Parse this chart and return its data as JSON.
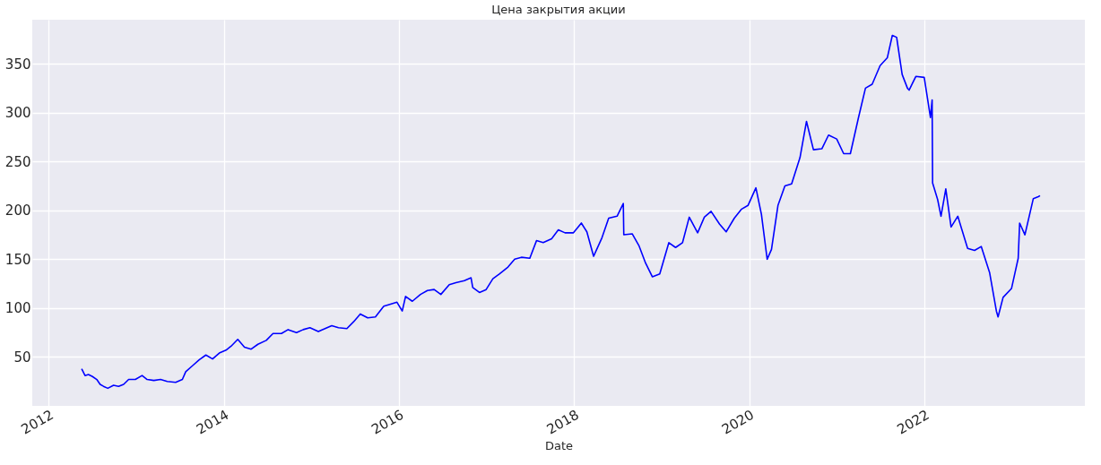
{
  "chart_data": {
    "type": "line",
    "title": "Цена закрытия акции",
    "xlabel": "Date",
    "x": [
      "2012-05-18",
      "2012-06-01",
      "2012-06-15",
      "2012-07-02",
      "2012-07-20",
      "2012-08-03",
      "2012-08-17",
      "2012-09-04",
      "2012-09-28",
      "2012-10-19",
      "2012-11-09",
      "2012-11-30",
      "2012-12-28",
      "2013-01-25",
      "2013-02-15",
      "2013-03-15",
      "2013-04-12",
      "2013-05-10",
      "2013-06-14",
      "2013-07-12",
      "2013-07-26",
      "2013-08-23",
      "2013-09-20",
      "2013-10-18",
      "2013-11-15",
      "2013-12-13",
      "2014-01-10",
      "2014-01-31",
      "2014-02-28",
      "2014-03-28",
      "2014-04-25",
      "2014-05-23",
      "2014-06-27",
      "2014-07-25",
      "2014-08-29",
      "2014-09-26",
      "2014-10-31",
      "2014-11-28",
      "2014-12-26",
      "2015-01-30",
      "2015-02-27",
      "2015-03-27",
      "2015-04-24",
      "2015-05-29",
      "2015-06-26",
      "2015-07-24",
      "2015-08-24",
      "2015-09-25",
      "2015-10-30",
      "2015-11-27",
      "2015-12-24",
      "2016-01-15",
      "2016-01-29",
      "2016-02-26",
      "2016-03-31",
      "2016-04-29",
      "2016-05-27",
      "2016-06-24",
      "2016-07-29",
      "2016-08-26",
      "2016-09-30",
      "2016-10-28",
      "2016-11-04",
      "2016-12-02",
      "2016-12-30",
      "2017-01-27",
      "2017-02-24",
      "2017-03-31",
      "2017-04-28",
      "2017-05-26",
      "2017-06-30",
      "2017-07-28",
      "2017-08-25",
      "2017-09-29",
      "2017-10-27",
      "2017-11-24",
      "2017-12-29",
      "2018-01-31",
      "2018-02-23",
      "2018-03-23",
      "2018-04-27",
      "2018-05-25",
      "2018-06-29",
      "2018-07-25",
      "2018-07-27",
      "2018-08-31",
      "2018-09-28",
      "2018-10-26",
      "2018-11-23",
      "2018-12-24",
      "2019-01-31",
      "2019-02-28",
      "2019-03-29",
      "2019-04-26",
      "2019-05-31",
      "2019-06-28",
      "2019-07-26",
      "2019-08-30",
      "2019-09-27",
      "2019-10-31",
      "2019-11-29",
      "2019-12-27",
      "2020-01-29",
      "2020-02-21",
      "2020-03-16",
      "2020-04-03",
      "2020-04-30",
      "2020-05-29",
      "2020-06-26",
      "2020-07-31",
      "2020-08-27",
      "2020-09-25",
      "2020-10-30",
      "2020-11-27",
      "2020-12-31",
      "2021-01-29",
      "2021-02-26",
      "2021-03-31",
      "2021-04-30",
      "2021-05-28",
      "2021-06-30",
      "2021-07-30",
      "2021-08-20",
      "2021-09-07",
      "2021-09-30",
      "2021-10-22",
      "2021-10-29",
      "2021-11-26",
      "2021-12-31",
      "2022-01-26",
      "2022-02-02",
      "2022-02-04",
      "2022-02-25",
      "2022-03-11",
      "2022-03-31",
      "2022-04-22",
      "2022-05-20",
      "2022-06-30",
      "2022-07-29",
      "2022-08-26",
      "2022-09-30",
      "2022-10-28",
      "2022-11-04",
      "2022-11-25",
      "2022-12-30",
      "2023-01-27",
      "2023-02-02",
      "2023-02-24",
      "2023-03-31",
      "2023-04-21",
      "2023-04-28"
    ],
    "series": [
      {
        "color": "#0000ff",
        "values": [
          38,
          31,
          32,
          30,
          27,
          22,
          20,
          18,
          21,
          20,
          22,
          27,
          27,
          31,
          27,
          26,
          27,
          25,
          24,
          27,
          35,
          41,
          47,
          52,
          48,
          54,
          57,
          61,
          68,
          60,
          58,
          63,
          67,
          74,
          74,
          78,
          75,
          78,
          80,
          76,
          79,
          82,
          80,
          79,
          86,
          94,
          90,
          91,
          102,
          104,
          106,
          97,
          112,
          107,
          114,
          118,
          119,
          114,
          124,
          126,
          128,
          131,
          121,
          116,
          119,
          130,
          135,
          142,
          150,
          152,
          151,
          169,
          167,
          171,
          180,
          177,
          177,
          187,
          178,
          153,
          172,
          192,
          194,
          207,
          175,
          176,
          164,
          146,
          132,
          135,
          167,
          162,
          167,
          193,
          177,
          193,
          199,
          186,
          178,
          192,
          201,
          205,
          223,
          196,
          150,
          160,
          205,
          225,
          227,
          254,
          291,
          262,
          263,
          277,
          273,
          258,
          258,
          294,
          325,
          329,
          348,
          356,
          379,
          377,
          339,
          325,
          323,
          337,
          336,
          295,
          313,
          228,
          211,
          194,
          222,
          183,
          194,
          161,
          159,
          163,
          136,
          97,
          91,
          111,
          120,
          151,
          187,
          175,
          212,
          214,
          215
        ]
      }
    ],
    "xlim": [
      "2011-10-25",
      "2023-11-01"
    ],
    "xticks": [
      "2012",
      "2014",
      "2016",
      "2018",
      "2020",
      "2022"
    ],
    "ylim": [
      0,
      395
    ],
    "yticks": [
      50,
      100,
      150,
      200,
      250,
      300,
      350
    ],
    "grid": true,
    "marker": "none",
    "line_style": "solid"
  }
}
